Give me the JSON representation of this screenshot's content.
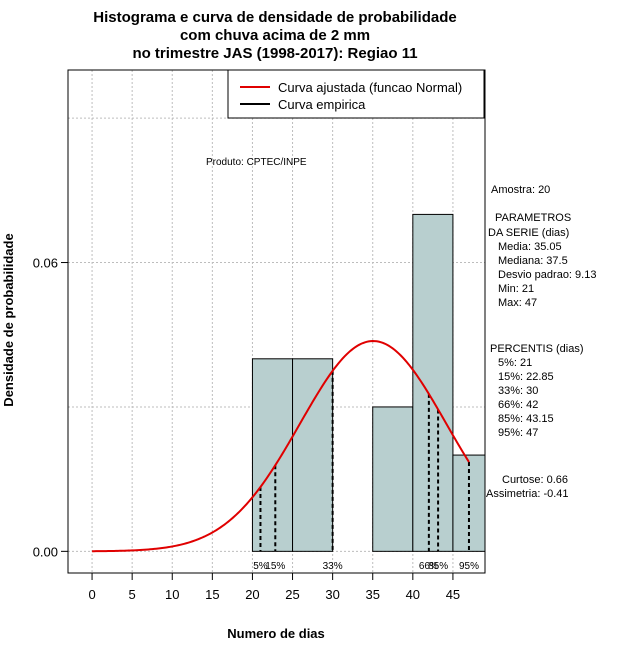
{
  "chart_data": {
    "type": "bar",
    "title_lines": [
      "Histograma e curva de densidade de probabilidade",
      "com chuva acima de 2 mm",
      "no trimestre JAS (1998-2017): Regiao 11"
    ],
    "xlabel": "Numero de dias",
    "ylabel": "Densidade de probabilidade",
    "xlim": [
      -3,
      49
    ],
    "ylim": [
      -0.0045,
      0.1
    ],
    "x_ticks": [
      0,
      5,
      10,
      15,
      20,
      25,
      30,
      35,
      40,
      45
    ],
    "y_ticks": [
      0.0,
      0.06
    ],
    "y_tick_labels": [
      "0.00",
      "0.06"
    ],
    "grid": true,
    "legend_position": "top-right",
    "legend": [
      {
        "label": "Curva ajustada (funcao Normal)",
        "color": "#e00000"
      },
      {
        "label": "Curva empirica",
        "color": "#000000"
      }
    ],
    "bars": [
      {
        "x0": 20,
        "x1": 25,
        "density": 0.04
      },
      {
        "x0": 25,
        "x1": 30,
        "density": 0.04
      },
      {
        "x0": 30,
        "x1": 35,
        "density": 0.0
      },
      {
        "x0": 35,
        "x1": 40,
        "density": 0.03
      },
      {
        "x0": 40,
        "x1": 45,
        "density": 0.07
      },
      {
        "x0": 45,
        "x1": 50,
        "density": 0.02
      }
    ],
    "normal_fit": {
      "mean": 35.05,
      "sd": 9.13,
      "x_from": 0,
      "x_to": 47
    },
    "percentile_lines": [
      {
        "label": "5%",
        "x": 21
      },
      {
        "label": "15%",
        "x": 22.85
      },
      {
        "label": "33%",
        "x": 30
      },
      {
        "label": "66%",
        "x": 42
      },
      {
        "label": "85%",
        "x": 43.15
      },
      {
        "label": "95%",
        "x": 47
      }
    ],
    "bar_color": "#b8cfcf",
    "curve_color": "#e00000"
  },
  "annotations": {
    "produto": "Produto: CPTEC/INPE",
    "amostra": "Amostra: 20",
    "parametros_title": "PARAMETROS",
    "parametros_subtitle": "DA SERIE (dias)",
    "media": "Media: 35.05",
    "mediana": "Mediana: 37.5",
    "desvio": "Desvio padrao: 9.13",
    "min": "Min: 21",
    "max": "Max: 47",
    "percentis_title": "PERCENTIS (dias)",
    "p5": "5%: 21",
    "p15": "15%: 22.85",
    "p33": "33%: 30",
    "p66": "66%: 42",
    "p85": "85%: 43.15",
    "p95": "95%: 47",
    "curtose": "Curtose: 0.66",
    "assimetria": "Assimetria: -0.41"
  }
}
